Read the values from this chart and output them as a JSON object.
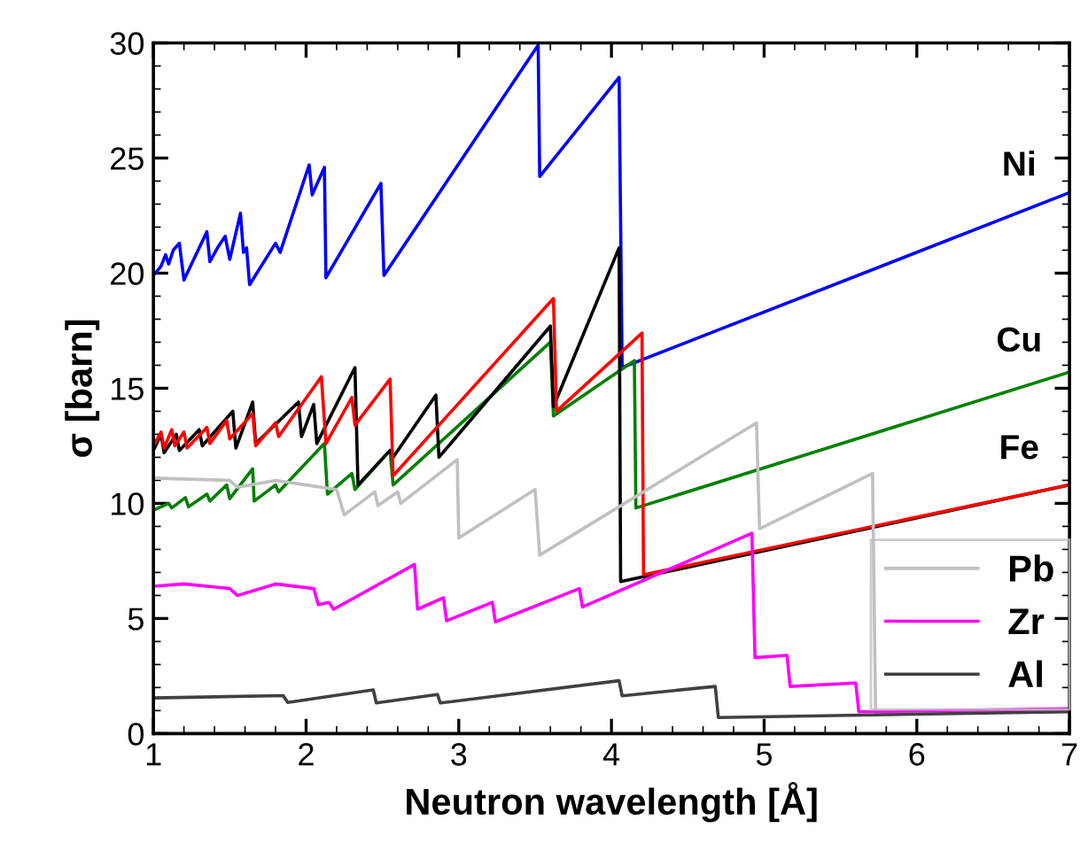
{
  "chart_data": {
    "type": "line",
    "xlabel": "Neutron wavelength [Å]",
    "ylabel": "σ [barn]",
    "xlim": [
      1,
      7
    ],
    "xticks": [
      1,
      2,
      3,
      4,
      5,
      6,
      7
    ],
    "ylim": [
      0,
      30
    ],
    "yticks": [
      0,
      5,
      10,
      15,
      20,
      25,
      30
    ],
    "grid": false,
    "legend": "bottom right",
    "marker": "none",
    "line_style": "solid",
    "series": [
      {
        "name": "Ni",
        "color": "#0000ff",
        "x": [
          1.0,
          1.05,
          1.08,
          1.1,
          1.13,
          1.17,
          1.2,
          1.25,
          1.35,
          1.37,
          1.42,
          1.47,
          1.5,
          1.57,
          1.59,
          1.61,
          1.63,
          1.8,
          1.83,
          2.02,
          2.04,
          2.12,
          2.13,
          2.49,
          2.51,
          3.52,
          3.53,
          4.05,
          4.07,
          7.0
        ],
        "values": [
          19.9,
          20.3,
          20.8,
          20.4,
          21.0,
          21.3,
          19.7,
          20.4,
          21.8,
          20.5,
          21.1,
          21.6,
          20.6,
          22.6,
          20.9,
          21.1,
          19.5,
          21.3,
          20.9,
          24.7,
          23.4,
          24.6,
          19.8,
          23.9,
          19.9,
          29.9,
          24.2,
          28.5,
          15.9,
          23.5
        ]
      },
      {
        "name": "Cu",
        "color": "#008000",
        "x": [
          1.0,
          1.1,
          1.12,
          1.21,
          1.23,
          1.35,
          1.37,
          1.48,
          1.5,
          1.65,
          1.66,
          1.8,
          1.82,
          2.12,
          2.14,
          2.3,
          2.32,
          2.55,
          2.57,
          3.6,
          3.62,
          4.15,
          4.16,
          7.0
        ],
        "values": [
          9.7,
          10.0,
          9.8,
          10.25,
          9.85,
          10.4,
          10.1,
          10.8,
          10.2,
          11.5,
          10.1,
          10.8,
          10.5,
          12.6,
          10.4,
          11.3,
          10.6,
          12.3,
          10.8,
          17.0,
          13.8,
          16.2,
          9.8,
          15.7
        ]
      },
      {
        "color": "#000000",
        "x": [
          1.0,
          1.05,
          1.07,
          1.15,
          1.17,
          1.3,
          1.32,
          1.52,
          1.54,
          1.65,
          1.67,
          1.95,
          1.97,
          2.05,
          2.07,
          2.32,
          2.34,
          2.55,
          2.57,
          2.85,
          2.87,
          3.6,
          3.62,
          4.05,
          4.06,
          7.0
        ],
        "values": [
          12.3,
          13.0,
          12.2,
          13.0,
          12.3,
          13.2,
          12.5,
          14.0,
          12.4,
          14.4,
          12.6,
          14.4,
          12.9,
          14.3,
          12.6,
          15.9,
          10.8,
          12.3,
          12.0,
          14.7,
          12.0,
          17.7,
          14.2,
          21.1,
          6.6,
          10.8
        ]
      },
      {
        "name": "Fe",
        "color": "#ff0000",
        "x": [
          1.0,
          1.05,
          1.07,
          1.12,
          1.14,
          1.2,
          1.22,
          1.35,
          1.37,
          1.48,
          1.5,
          1.65,
          1.67,
          1.8,
          1.82,
          2.1,
          2.13,
          2.3,
          2.32,
          2.55,
          2.57,
          3.62,
          3.64,
          4.2,
          4.21,
          7.0
        ],
        "values": [
          12.5,
          13.1,
          12.4,
          13.2,
          12.5,
          13.1,
          12.4,
          13.3,
          12.6,
          13.6,
          12.8,
          13.9,
          12.5,
          13.5,
          12.9,
          15.5,
          12.6,
          14.6,
          13.4,
          15.4,
          11.2,
          18.9,
          14.0,
          17.4,
          6.9,
          10.8
        ]
      },
      {
        "name": "Pb",
        "color": "#c0c0c0",
        "x": [
          1.0,
          1.5,
          1.55,
          1.8,
          2.0,
          2.2,
          2.25,
          2.45,
          2.47,
          2.6,
          2.62,
          2.99,
          3.0,
          3.5,
          3.53,
          4.95,
          4.97,
          5.71,
          5.73,
          7.0
        ],
        "values": [
          11.1,
          11.0,
          10.7,
          11.0,
          10.8,
          10.6,
          9.5,
          10.5,
          9.9,
          10.5,
          10.0,
          11.9,
          8.5,
          10.6,
          7.75,
          13.5,
          8.9,
          11.3,
          0.9,
          1.0
        ]
      },
      {
        "name": "Zr",
        "color": "#ff00ff",
        "x": [
          1.0,
          1.2,
          1.5,
          1.55,
          1.8,
          2.05,
          2.08,
          2.15,
          2.18,
          2.71,
          2.73,
          2.9,
          2.92,
          3.22,
          3.24,
          3.79,
          3.81,
          4.92,
          4.94,
          5.15,
          5.17,
          5.6,
          5.62,
          7.0
        ],
        "values": [
          6.4,
          6.5,
          6.3,
          6.0,
          6.5,
          6.3,
          5.6,
          5.7,
          5.4,
          7.35,
          5.4,
          5.9,
          4.9,
          5.7,
          4.85,
          6.3,
          5.5,
          8.7,
          3.3,
          3.4,
          2.05,
          2.2,
          0.95,
          1.08
        ]
      },
      {
        "name": "Al",
        "color": "#404040",
        "x": [
          1.0,
          1.85,
          1.88,
          2.44,
          2.46,
          2.86,
          2.88,
          4.05,
          4.07,
          4.68,
          4.7,
          7.0
        ],
        "values": [
          1.55,
          1.65,
          1.35,
          1.9,
          1.33,
          1.7,
          1.33,
          2.3,
          1.64,
          2.05,
          0.7,
          0.95
        ]
      }
    ]
  }
}
